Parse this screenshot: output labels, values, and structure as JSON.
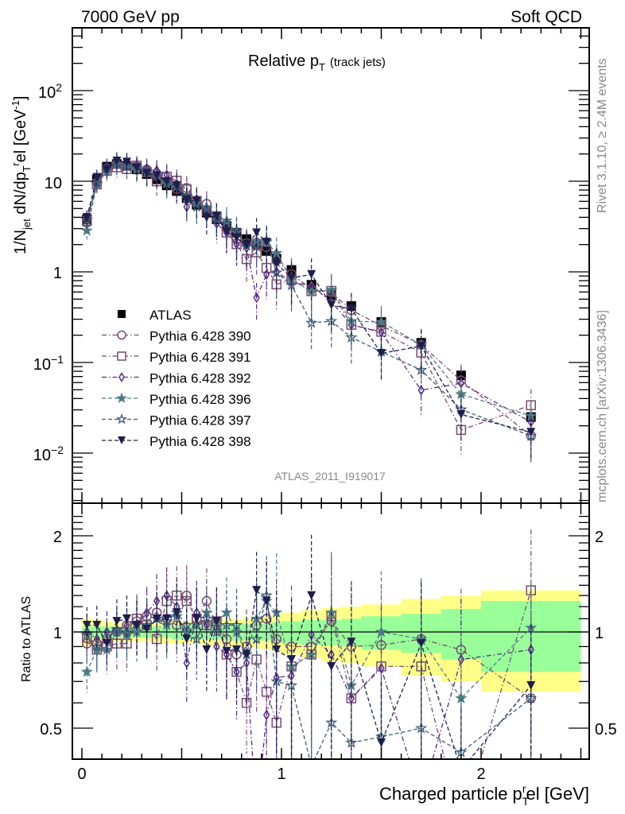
{
  "header": {
    "left_label": "7000 GeV pp",
    "right_label": "Soft QCD"
  },
  "side_labels": {
    "rivet": "Rivet 3.1.10, ≥ 2.4M events",
    "mcplots": "mcplots.cern.ch [arXiv:1306.3436]"
  },
  "chart_data": [
    {
      "type": "scatter",
      "title": "Relative p_T (track jets)",
      "title_main": "Relative p",
      "title_sub": "T",
      "title_note": "(track jets)",
      "xlabel": "Charged particle p_T^rel [GeV]",
      "ylabel": "1/N_jet dN/dp_T^rel [GeV^-1]",
      "yscale": "log",
      "ylim": [
        0.003,
        500
      ],
      "xlim": [
        -0.05,
        2.55
      ],
      "y_ticks": [
        "10^2",
        "10",
        "1",
        "10^-1",
        "10^-2"
      ],
      "analysis_tag": "ATLAS_2011_I919017",
      "legend_position": "center-left",
      "x": [
        0.025,
        0.075,
        0.125,
        0.175,
        0.225,
        0.275,
        0.325,
        0.375,
        0.425,
        0.475,
        0.525,
        0.575,
        0.625,
        0.675,
        0.725,
        0.775,
        0.825,
        0.875,
        0.925,
        0.975,
        1.05,
        1.15,
        1.25,
        1.35,
        1.5,
        1.7,
        1.9,
        2.25
      ],
      "series": [
        {
          "name": "ATLAS",
          "marker": "filled-square",
          "color": "#000000",
          "line": "none",
          "values": [
            3.8,
            10.5,
            14.5,
            15.5,
            14.8,
            13.5,
            12.0,
            10.5,
            9.0,
            7.8,
            6.5,
            5.5,
            4.5,
            3.8,
            3.2,
            2.7,
            2.3,
            2.0,
            1.7,
            1.4,
            1.05,
            0.72,
            0.55,
            0.42,
            0.28,
            0.165,
            0.072,
            0.025
          ]
        },
        {
          "name": "Pythia 6.428 390",
          "marker": "open-circle",
          "color": "#7a4a6e",
          "line": "dash-dot",
          "rel": [
            0.92,
            0.92,
            0.95,
            1.0,
            1.05,
            1.08,
            1.12,
            1.15,
            1.1,
            1.05,
            1.3,
            1.1,
            1.25,
            1.05,
            0.95,
            0.85,
            0.9,
            1.05,
            1.1,
            0.95,
            0.9,
            0.9,
            1.08,
            0.9,
            0.91,
            0.95,
            0.88,
            0.62
          ]
        },
        {
          "name": "Pythia 6.428 391",
          "marker": "open-square",
          "color": "#7a4a6e",
          "line": "dash-dot",
          "rel": [
            0.96,
            0.88,
            0.9,
            0.92,
            0.92,
            1.1,
            1.05,
            0.95,
            1.25,
            1.3,
            1.25,
            1.1,
            1.05,
            1.08,
            0.85,
            0.75,
            0.6,
            0.82,
            0.65,
            0.52,
            0.78,
            0.85,
            1.12,
            0.62,
            0.78,
            0.78,
            0.25,
            1.35
          ]
        },
        {
          "name": "Pythia 6.428 392",
          "marker": "open-diamond",
          "color": "#5a2a86",
          "line": "dash-dot",
          "rel": [
            1.0,
            0.95,
            1.0,
            1.0,
            1.05,
            1.05,
            1.15,
            1.25,
            1.3,
            1.2,
            0.8,
            1.15,
            1.05,
            0.9,
            0.85,
            0.75,
            0.8,
            0.26,
            0.55,
            0.72,
            0.73,
            0.98,
            0.85,
            0.62,
            0.77,
            0.3,
            0.82,
            0.88
          ]
        },
        {
          "name": "Pythia 6.428 396",
          "marker": "filled-star",
          "color": "#4d7a85",
          "line": "dash",
          "rel": [
            0.75,
            0.88,
            0.88,
            1.0,
            0.98,
            1.0,
            1.05,
            1.1,
            1.05,
            1.12,
            1.0,
            1.05,
            1.15,
            1.08,
            1.15,
            1.0,
            0.85,
            1.1,
            1.25,
            1.15,
            0.78,
            0.85,
            1.15,
            0.68,
            1.0,
            0.95,
            0.62,
            1.03
          ]
        },
        {
          "name": "Pythia 6.428 397",
          "marker": "open-star",
          "color": "#3d5c78",
          "line": "dash",
          "rel": [
            0.98,
            0.9,
            0.95,
            1.02,
            1.0,
            1.05,
            1.05,
            1.1,
            1.08,
            1.15,
            1.05,
            0.95,
            1.1,
            1.0,
            1.05,
            1.05,
            0.85,
            0.95,
            1.3,
            0.7,
            0.68,
            0.38,
            0.52,
            0.45,
            0.47,
            0.5,
            0.42,
            0.62
          ]
        },
        {
          "name": "Pythia 6.428 398",
          "marker": "filled-triangle-down",
          "color": "#1e1e4e",
          "line": "dash",
          "rel": [
            1.05,
            1.05,
            0.92,
            1.08,
            1.1,
            1.05,
            1.02,
            1.1,
            1.1,
            1.15,
            0.95,
            1.1,
            0.88,
            1.08,
            0.87,
            0.88,
            0.85,
            1.35,
            1.25,
            0.88,
            0.82,
            1.3,
            0.78,
            0.93,
            0.45,
            0.92,
            0.37,
            0.68
          ]
        }
      ]
    },
    {
      "type": "scatter",
      "title": "",
      "xlabel": "Charged particle p_T^rel [GeV]",
      "ylabel": "Ratio to ATLAS",
      "yscale": "log",
      "ylim": [
        0.42,
        2.35
      ],
      "xlim": [
        -0.05,
        2.55
      ],
      "y_ticks": [
        "2",
        "1",
        "0.5"
      ],
      "x_ticks": [
        "0",
        "1",
        "2"
      ],
      "reference_line": 1,
      "uncertainty_bands": {
        "bin_edges": [
          0.0,
          0.05,
          0.1,
          0.15,
          0.2,
          0.25,
          0.3,
          0.35,
          0.4,
          0.45,
          0.5,
          0.55,
          0.6,
          0.65,
          0.7,
          0.75,
          0.8,
          0.85,
          0.9,
          0.95,
          1.0,
          1.1,
          1.2,
          1.3,
          1.4,
          1.6,
          1.8,
          2.0,
          2.5
        ],
        "stat_color": "#99ff99",
        "total_color": "#ffff88",
        "stat_halfwidth": [
          0.04,
          0.04,
          0.04,
          0.04,
          0.04,
          0.04,
          0.04,
          0.04,
          0.04,
          0.05,
          0.05,
          0.05,
          0.05,
          0.05,
          0.06,
          0.06,
          0.06,
          0.06,
          0.06,
          0.07,
          0.08,
          0.09,
          0.09,
          0.1,
          0.12,
          0.14,
          0.18,
          0.25
        ],
        "total_halfwidth": [
          0.1,
          0.09,
          0.08,
          0.07,
          0.07,
          0.07,
          0.07,
          0.07,
          0.08,
          0.08,
          0.08,
          0.08,
          0.09,
          0.09,
          0.1,
          0.1,
          0.1,
          0.11,
          0.12,
          0.13,
          0.15,
          0.17,
          0.19,
          0.2,
          0.22,
          0.27,
          0.3,
          0.35
        ]
      }
    }
  ]
}
